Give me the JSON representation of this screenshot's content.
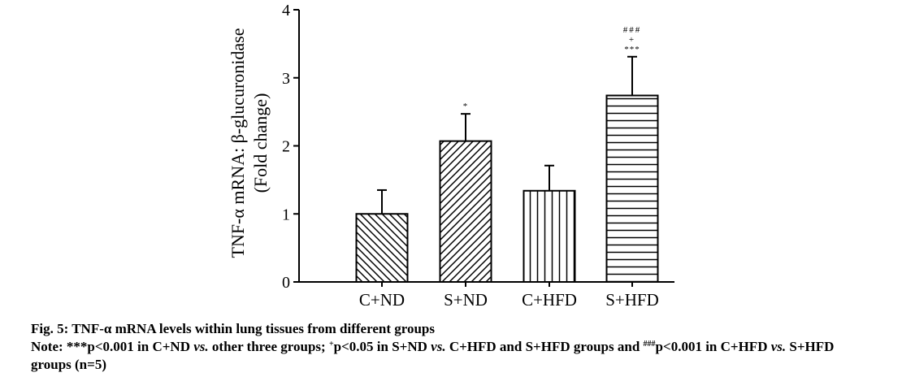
{
  "chart_data": {
    "type": "bar",
    "categories": [
      "C+ND",
      "S+ND",
      "C+HFD",
      "S+HFD"
    ],
    "values": [
      1.0,
      2.07,
      1.34,
      2.74
    ],
    "errors": [
      0.35,
      0.4,
      0.37,
      0.57
    ],
    "patterns": [
      "diag-down",
      "diag-up",
      "vertical",
      "horizontal"
    ],
    "significance": [
      "",
      "*",
      "",
      "***"
    ],
    "significance_extra": [
      "",
      "",
      "",
      "+"
    ],
    "significance_top": [
      "",
      "",
      "",
      "###"
    ],
    "ylabel_line1": "TNF-α mRNA: β-glucuronidase",
    "ylabel_line2": "(Fold change)",
    "ylim": [
      0,
      4
    ],
    "yticks": [
      "0",
      "1",
      "2",
      "3",
      "4"
    ],
    "grid": false
  },
  "caption": {
    "title": "Fig. 5: TNF-α mRNA levels within lung tissues from different groups",
    "note_1": "Note: ***p<0.001 in C+ND ",
    "vs_1": "vs.",
    "note_2": " other three groups; ",
    "plus": "+",
    "note_3": "p<0.05 in S+ND ",
    "vs_2": "vs.",
    "note_4": " C+HFD and S+HFD groups and ",
    "hash": "###",
    "note_5": "p<0.001 in C+HFD ",
    "vs_3": "vs.",
    "note_6": " S+HFD groups (n=5)"
  }
}
